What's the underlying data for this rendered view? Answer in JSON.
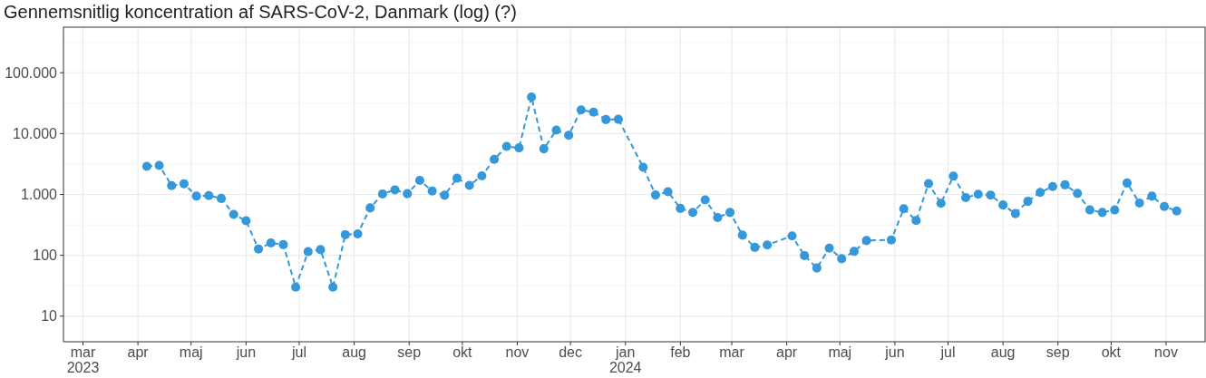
{
  "chart_data": {
    "type": "line",
    "title": "Gennemsnitlig koncentration af SARS-CoV-2, Danmark (log) (?)",
    "x": [
      "2023-04-06",
      "2023-04-13",
      "2023-04-20",
      "2023-04-27",
      "2023-05-04",
      "2023-05-11",
      "2023-05-18",
      "2023-05-25",
      "2023-06-01",
      "2023-06-08",
      "2023-06-15",
      "2023-06-22",
      "2023-06-29",
      "2023-07-06",
      "2023-07-13",
      "2023-07-20",
      "2023-07-27",
      "2023-08-03",
      "2023-08-10",
      "2023-08-17",
      "2023-08-24",
      "2023-08-31",
      "2023-09-07",
      "2023-09-14",
      "2023-09-21",
      "2023-09-28",
      "2023-10-05",
      "2023-10-12",
      "2023-10-19",
      "2023-10-26",
      "2023-11-02",
      "2023-11-09",
      "2023-11-16",
      "2023-11-23",
      "2023-11-30",
      "2023-12-07",
      "2023-12-14",
      "2023-12-21",
      "2023-12-28",
      "2024-01-11",
      "2024-01-18",
      "2024-01-25",
      "2024-02-01",
      "2024-02-08",
      "2024-02-15",
      "2024-02-22",
      "2024-02-29",
      "2024-03-07",
      "2024-03-14",
      "2024-03-21",
      "2024-04-04",
      "2024-04-11",
      "2024-04-18",
      "2024-04-25",
      "2024-05-02",
      "2024-05-09",
      "2024-05-16",
      "2024-05-30",
      "2024-06-06",
      "2024-06-13",
      "2024-06-20",
      "2024-06-27",
      "2024-07-04",
      "2024-07-11",
      "2024-07-18",
      "2024-07-25",
      "2024-08-01",
      "2024-08-08",
      "2024-08-15",
      "2024-08-22",
      "2024-08-29",
      "2024-09-05",
      "2024-09-12",
      "2024-09-19",
      "2024-09-26",
      "2024-10-03",
      "2024-10-10",
      "2024-10-17",
      "2024-10-24",
      "2024-10-31",
      "2024-11-07"
    ],
    "series": [
      {
        "color": "#3498db",
        "values": [
          2900,
          3000,
          1400,
          1500,
          940,
          960,
          860,
          470,
          370,
          127,
          160,
          150,
          30,
          115,
          124,
          30,
          218,
          225,
          600,
          1020,
          1190,
          1030,
          1700,
          1140,
          970,
          1850,
          1410,
          2020,
          3780,
          6150,
          5820,
          40000,
          5630,
          11400,
          9400,
          24500,
          22500,
          17000,
          17200,
          2800,
          980,
          1110,
          590,
          506,
          815,
          417,
          506,
          215,
          135,
          148,
          208,
          99,
          62,
          131,
          88,
          116,
          175,
          179,
          582,
          374,
          1510,
          715,
          2000,
          887,
          1010,
          977,
          671,
          485,
          771,
          1080,
          1350,
          1440,
          1040,
          557,
          506,
          557,
          1540,
          723,
          937,
          635,
          535
        ]
      }
    ],
    "xlim": [
      "2023-02-18",
      "2024-11-23"
    ],
    "xticks": [
      {
        "value": "2023-03-01",
        "label": "mar\n2023"
      },
      {
        "value": "2023-04-01",
        "label": "apr"
      },
      {
        "value": "2023-05-01",
        "label": "maj"
      },
      {
        "value": "2023-06-01",
        "label": "jun"
      },
      {
        "value": "2023-07-01",
        "label": "jul"
      },
      {
        "value": "2023-08-01",
        "label": "aug"
      },
      {
        "value": "2023-09-01",
        "label": "sep"
      },
      {
        "value": "2023-10-01",
        "label": "okt"
      },
      {
        "value": "2023-11-01",
        "label": "nov"
      },
      {
        "value": "2023-12-01",
        "label": "dec"
      },
      {
        "value": "2024-01-01",
        "label": "jan\n2024"
      },
      {
        "value": "2024-02-01",
        "label": "feb"
      },
      {
        "value": "2024-03-01",
        "label": "mar"
      },
      {
        "value": "2024-04-01",
        "label": "apr"
      },
      {
        "value": "2024-05-01",
        "label": "maj"
      },
      {
        "value": "2024-06-01",
        "label": "jun"
      },
      {
        "value": "2024-07-01",
        "label": "jul"
      },
      {
        "value": "2024-08-01",
        "label": "aug"
      },
      {
        "value": "2024-09-01",
        "label": "sep"
      },
      {
        "value": "2024-10-01",
        "label": "okt"
      },
      {
        "value": "2024-11-01",
        "label": "nov"
      }
    ],
    "ylim": [
      3.8,
      560000
    ],
    "yticks": [
      {
        "value": 10,
        "label": "10"
      },
      {
        "value": 31.6,
        "label": null
      },
      {
        "value": 100,
        "label": "100"
      },
      {
        "value": 316,
        "label": null
      },
      {
        "value": 1000,
        "label": "1.000"
      },
      {
        "value": 3162,
        "label": null
      },
      {
        "value": 10000,
        "label": "10.000"
      },
      {
        "value": 31623,
        "label": null
      },
      {
        "value": 100000,
        "label": "100.000"
      },
      {
        "value": 316228,
        "label": null
      }
    ],
    "log": true,
    "grid": true,
    "marker": "circle",
    "line_style": "dashed"
  }
}
